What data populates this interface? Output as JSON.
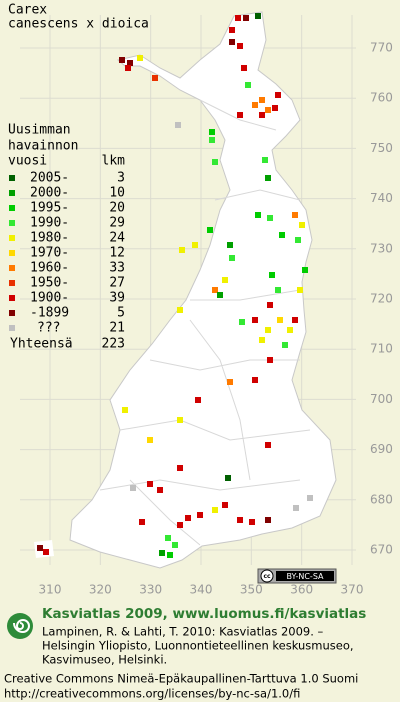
{
  "title": [
    "Carex",
    "canescens x dioica"
  ],
  "legend": {
    "heading": [
      "Uusimman",
      "havainnon",
      "vuosi"
    ],
    "count_heading": "lkm",
    "rows": [
      {
        "label": "2005-",
        "count": 3,
        "color": "#006000"
      },
      {
        "label": "2000-",
        "count": 10,
        "color": "#00a000"
      },
      {
        "label": "1995-",
        "count": 20,
        "color": "#00cc00"
      },
      {
        "label": "1990-",
        "count": 29,
        "color": "#33e833"
      },
      {
        "label": "1980-",
        "count": 24,
        "color": "#f0f000"
      },
      {
        "label": "1970-",
        "count": 12,
        "color": "#ffd800"
      },
      {
        "label": "1960-",
        "count": 33,
        "color": "#ff7a00"
      },
      {
        "label": "1950-",
        "count": 27,
        "color": "#e83000"
      },
      {
        "label": "1900-",
        "count": 39,
        "color": "#d00000"
      },
      {
        "label": "-1899",
        "count": 5,
        "color": "#800000"
      },
      {
        "label": "???",
        "count": 21,
        "color": "#c0c0c0"
      }
    ],
    "total_label": "Yhteensä",
    "total": 223
  },
  "axes": {
    "y_labels": [
      770,
      760,
      750,
      740,
      730,
      720,
      710,
      700,
      690,
      680,
      670
    ],
    "x_labels": [
      310,
      320,
      330,
      340,
      350,
      360,
      370
    ]
  },
  "license_badge": [
    "cc",
    "BY-NC-SA"
  ],
  "footer": {
    "site": "Kasviatlas 2009, www.luomus.fi/kasviatlas",
    "citation": [
      "Lampinen, R. & Lahti, T. 2010: Kasviatlas 2009. –",
      "Helsingin Yliopisto, Luonnontieteellinen keskusmuseo,",
      "Kasvimuseo, Helsinki."
    ],
    "license": [
      "Creative Commons Nimeä-Epäkaupallinen-Tarttuva 1.0 Suomi",
      "http://creativecommons.org/licenses/by-nc-sa/1.0/fi"
    ]
  }
}
